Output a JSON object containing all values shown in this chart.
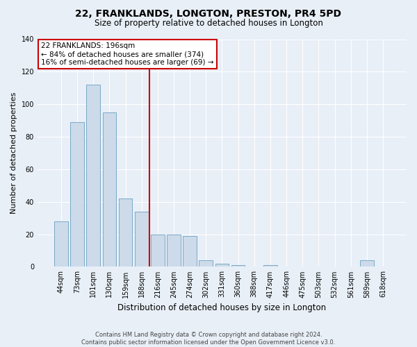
{
  "title": "22, FRANKLANDS, LONGTON, PRESTON, PR4 5PD",
  "subtitle": "Size of property relative to detached houses in Longton",
  "xlabel": "Distribution of detached houses by size in Longton",
  "ylabel": "Number of detached properties",
  "bar_labels": [
    "44sqm",
    "73sqm",
    "101sqm",
    "130sqm",
    "159sqm",
    "188sqm",
    "216sqm",
    "245sqm",
    "274sqm",
    "302sqm",
    "331sqm",
    "360sqm",
    "388sqm",
    "417sqm",
    "446sqm",
    "475sqm",
    "503sqm",
    "532sqm",
    "561sqm",
    "589sqm",
    "618sqm"
  ],
  "bar_values": [
    28,
    89,
    112,
    95,
    42,
    34,
    20,
    20,
    19,
    4,
    2,
    1,
    0,
    1,
    0,
    0,
    0,
    0,
    0,
    4,
    0
  ],
  "bar_color": "#ccdaea",
  "bar_edge_color": "#7aaac8",
  "vline_color": "#cc0000",
  "ylim": [
    0,
    140
  ],
  "yticks": [
    0,
    20,
    40,
    60,
    80,
    100,
    120,
    140
  ],
  "annotation_lines": [
    "22 FRANKLANDS: 196sqm",
    "← 84% of detached houses are smaller (374)",
    "16% of semi-detached houses are larger (69) →"
  ],
  "annotation_box_color": "#ffffff",
  "annotation_box_edge_color": "#cc0000",
  "footer_line1": "Contains HM Land Registry data © Crown copyright and database right 2024.",
  "footer_line2": "Contains public sector information licensed under the Open Government Licence v3.0.",
  "bg_color": "#e8eff7",
  "grid_color": "#ffffff",
  "title_fontsize": 10,
  "subtitle_fontsize": 8.5,
  "ylabel_fontsize": 8,
  "xlabel_fontsize": 8.5,
  "tick_fontsize": 7,
  "annotation_fontsize": 7.5,
  "footer_fontsize": 6
}
